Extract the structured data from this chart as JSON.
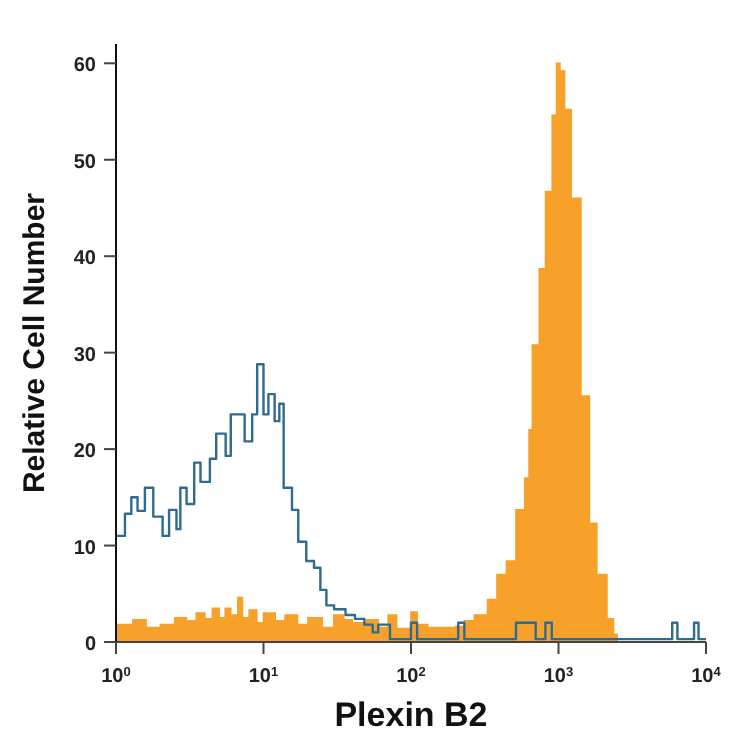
{
  "chart_data": {
    "type": "area",
    "xlabel": "Plexin B2",
    "ylabel": "Relative Cell Number",
    "log": "x",
    "xlim": [
      1,
      10000
    ],
    "xticks": [
      {
        "value": 1,
        "label": "10$^{0}$"
      },
      {
        "value": 10,
        "label": "10$^{1}$"
      },
      {
        "value": 100,
        "label": "10$^{2}$"
      },
      {
        "value": 1000,
        "label": "10$^{3}$"
      },
      {
        "value": 10000,
        "label": "10$^{4}$"
      }
    ],
    "ylim": [
      0,
      62
    ],
    "yticks": [
      0,
      10,
      20,
      30,
      40,
      50,
      60
    ],
    "grid": false,
    "legend": false,
    "series": [
      {
        "color": "#f7a12a",
        "x": [
          1,
          1.3,
          1.6,
          2,
          2.5,
          3,
          3.5,
          4,
          4.5,
          5,
          5.5,
          6,
          6.7,
          7.2,
          8,
          9,
          10,
          12,
          14,
          17,
          20,
          25,
          30,
          35,
          40,
          50,
          60,
          70,
          80,
          100,
          110,
          130,
          160,
          200,
          230,
          269,
          330,
          383,
          444,
          515,
          590,
          632,
          665,
          740,
          817,
          906,
          970,
          1023,
          1100,
          1220,
          1420,
          1620,
          1820,
          2130,
          2360,
          2500
        ],
        "values": [
          1.8,
          2.3,
          1.5,
          1.8,
          2.5,
          2.2,
          3,
          2.4,
          3.5,
          2.5,
          3.5,
          2.8,
          4.6,
          2.5,
          3.3,
          2,
          3,
          2.2,
          2.8,
          1.8,
          2.5,
          1.5,
          2.8,
          2.3,
          2,
          2.3,
          1.5,
          2.8,
          1.4,
          3.1,
          1.8,
          1.5,
          1.5,
          1.6,
          2.2,
          2.8,
          4.4,
          7,
          8.4,
          13.7,
          17,
          22,
          30.8,
          38.7,
          46.7,
          54.6,
          60,
          59.2,
          55.2,
          46,
          25.5,
          12.3,
          7,
          2.4,
          0.8,
          0
        ]
      },
      {
        "type": "step",
        "color": "#2f6b8e",
        "x": [
          1,
          1.15,
          1.27,
          1.4,
          1.57,
          1.79,
          2.07,
          2.29,
          2.57,
          2.73,
          3.01,
          3.39,
          3.74,
          4.33,
          4.78,
          5.54,
          6,
          6.88,
          7.45,
          8.38,
          9.06,
          10,
          10.8,
          11.9,
          12.8,
          13.7,
          15.6,
          17.2,
          19.5,
          22,
          24.3,
          26.7,
          30.1,
          36,
          41.7,
          48.3,
          55,
          60,
          66,
          72,
          100,
          110,
          200,
          209,
          230,
          500,
          515,
          603,
          700,
          815,
          900,
          5600,
          5900,
          6400,
          8000,
          8300,
          8900,
          10000
        ],
        "values": [
          11,
          13.3,
          15,
          13.6,
          16,
          13,
          11,
          13.7,
          11.7,
          16,
          14.3,
          18.6,
          16.6,
          19,
          21.6,
          19.3,
          23.6,
          23.6,
          20.8,
          23.6,
          28.8,
          23.6,
          25.7,
          22.9,
          24.7,
          16,
          13.7,
          10.4,
          8.4,
          7.7,
          5.4,
          3.8,
          3.4,
          2.8,
          2.4,
          1.8,
          1,
          1.8,
          1.8,
          0.3,
          2,
          0.3,
          0.3,
          2,
          0.3,
          0.3,
          2,
          2,
          0.3,
          2,
          0.3,
          0.3,
          2,
          0.3,
          0.3,
          2,
          0.3,
          0.3
        ]
      }
    ]
  }
}
